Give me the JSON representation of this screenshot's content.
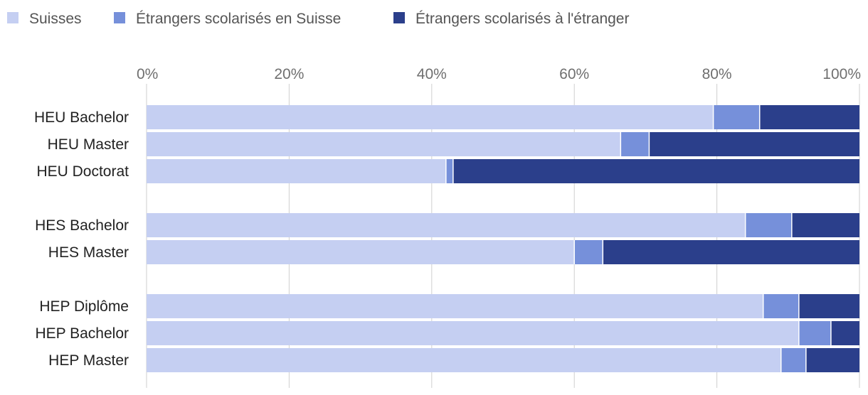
{
  "chart_data": {
    "type": "bar",
    "orientation": "horizontal",
    "stacked": true,
    "percent": true,
    "legend_position": "top-left",
    "grid": true,
    "xlim": [
      0,
      100
    ],
    "x_ticks": [
      "0%",
      "20%",
      "40%",
      "60%",
      "80%",
      "100%"
    ],
    "categories": [
      "HEU Bachelor",
      "HEU Master",
      "HEU Doctorat",
      "HES Bachelor",
      "HES Master",
      "HEP Diplôme",
      "HEP Bachelor",
      "HEP Master"
    ],
    "groups": [
      3,
      2,
      3
    ],
    "series": [
      {
        "name": "Suisses",
        "color": "#c5cff2",
        "values": [
          79.5,
          66.5,
          42,
          84,
          60,
          86.5,
          91.5,
          89
        ]
      },
      {
        "name": "Étrangers scolarisés en Suisse",
        "color": "#7690da",
        "values": [
          6.5,
          4,
          1,
          6.5,
          4,
          5,
          4.5,
          3.5
        ]
      },
      {
        "name": "Étrangers scolarisés à l'étranger",
        "color": "#2b3f8b",
        "values": [
          14,
          29.5,
          57,
          9.5,
          36,
          8.5,
          4,
          7.5
        ]
      }
    ]
  }
}
